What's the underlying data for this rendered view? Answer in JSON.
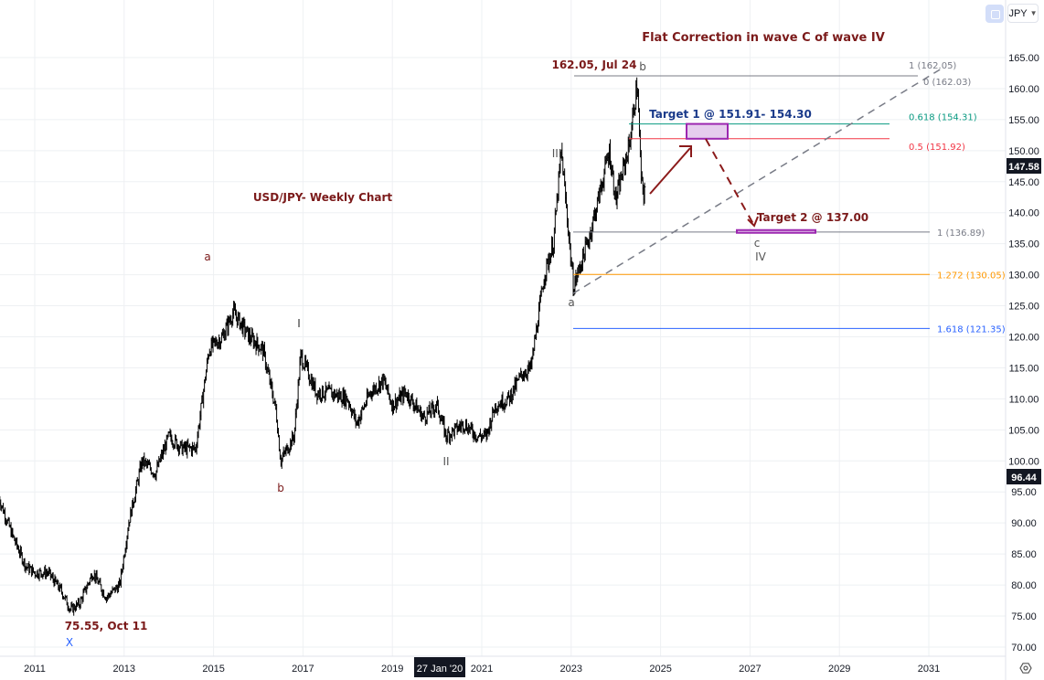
{
  "header": {
    "currency": "JPY",
    "currency_icon": "chevron-down-icon",
    "autoscale_icon": "fullscreen-icon"
  },
  "footer": {
    "settings_icon": "gear-icon",
    "crosshair_date": "27 Jan '20"
  },
  "chart_data": {
    "type": "ohlc",
    "title": "USD/JPY- Weekly Chart",
    "subtitle": "Flat Correction in wave C of wave IV",
    "ylim": [
      70,
      165
    ],
    "xlim": [
      2010.2,
      2032.8
    ],
    "y_ticks": [
      "70.00",
      "75.00",
      "80.00",
      "85.00",
      "90.00",
      "95.00",
      "100.00",
      "105.00",
      "110.00",
      "115.00",
      "120.00",
      "125.00",
      "130.00",
      "135.00",
      "140.00",
      "145.00",
      "150.00",
      "155.00",
      "160.00",
      "165.00"
    ],
    "x_ticks": [
      "2011",
      "2013",
      "2015",
      "2017",
      "2019",
      "2021",
      "2023",
      "2025",
      "2027",
      "2029",
      "2031"
    ],
    "grid": true,
    "last_price": "147.58",
    "crosshair_price": "96.44",
    "approximate_path": [
      [
        2010.2,
        94
      ],
      [
        2010.5,
        88
      ],
      [
        2010.8,
        83
      ],
      [
        2011.0,
        82
      ],
      [
        2011.3,
        82
      ],
      [
        2011.6,
        79
      ],
      [
        2011.8,
        76
      ],
      [
        2012.0,
        77
      ],
      [
        2012.3,
        82
      ],
      [
        2012.6,
        78
      ],
      [
        2012.9,
        80
      ],
      [
        2013.1,
        90
      ],
      [
        2013.4,
        100
      ],
      [
        2013.7,
        98
      ],
      [
        2014.0,
        104
      ],
      [
        2014.3,
        102
      ],
      [
        2014.6,
        102
      ],
      [
        2014.9,
        118
      ],
      [
        2015.2,
        120
      ],
      [
        2015.44,
        124
      ],
      [
        2015.8,
        120
      ],
      [
        2016.1,
        118
      ],
      [
        2016.4,
        108
      ],
      [
        2016.5,
        100
      ],
      [
        2016.8,
        104
      ],
      [
        2016.95,
        117
      ],
      [
        2017.3,
        111
      ],
      [
        2017.6,
        111
      ],
      [
        2018.0,
        110
      ],
      [
        2018.2,
        106
      ],
      [
        2018.5,
        111
      ],
      [
        2018.8,
        113
      ],
      [
        2019.0,
        109
      ],
      [
        2019.3,
        111
      ],
      [
        2019.7,
        107
      ],
      [
        2020.0,
        109
      ],
      [
        2020.2,
        104
      ],
      [
        2020.6,
        106
      ],
      [
        2020.9,
        104
      ],
      [
        2021.1,
        104
      ],
      [
        2021.3,
        109
      ],
      [
        2021.6,
        110
      ],
      [
        2021.9,
        114
      ],
      [
        2022.1,
        115
      ],
      [
        2022.4,
        130
      ],
      [
        2022.6,
        135
      ],
      [
        2022.78,
        150
      ],
      [
        2022.9,
        140
      ],
      [
        2023.05,
        128
      ],
      [
        2023.4,
        136
      ],
      [
        2023.6,
        142
      ],
      [
        2023.85,
        150
      ],
      [
        2024.0,
        142
      ],
      [
        2024.3,
        151
      ],
      [
        2024.48,
        161
      ],
      [
        2024.56,
        146
      ],
      [
        2024.62,
        142
      ],
      [
        2024.66,
        147.58
      ]
    ],
    "fib_levels": [
      {
        "label": "1 (162.05)",
        "value": 162.05,
        "color": "#787b86"
      },
      {
        "label": "0 (162.03)",
        "value": 162.03,
        "color": "#787b86"
      },
      {
        "label": "0.618 (154.31)",
        "value": 154.31,
        "color": "#089981"
      },
      {
        "label": "0.5 (151.92)",
        "value": 151.92,
        "color": "#f23645"
      },
      {
        "label": "1 (136.89)",
        "value": 136.89,
        "color": "#787b86"
      },
      {
        "label": "1.272 (130.05)",
        "value": 130.05,
        "color": "#ff9800"
      },
      {
        "label": "1.618 (121.35)",
        "value": 121.35,
        "color": "#2962ff"
      }
    ],
    "annotations": {
      "high": "162.05, Jul 24",
      "low": "75.55, Oct 11",
      "target1": "Target 1 @ 151.91- 154.30",
      "target2": "Target 2 @ 137.00",
      "waves": {
        "x": "X",
        "a1": "a",
        "b1": "b",
        "w1": "I",
        "w2": "II",
        "w3": "III",
        "a2": "a",
        "b2": "b",
        "c2": "c",
        "w4": "IV"
      }
    },
    "colors": {
      "annotation": "#7b1a1a",
      "target1_text": "#1a3a8a",
      "target_box": "#9c27b0"
    }
  }
}
